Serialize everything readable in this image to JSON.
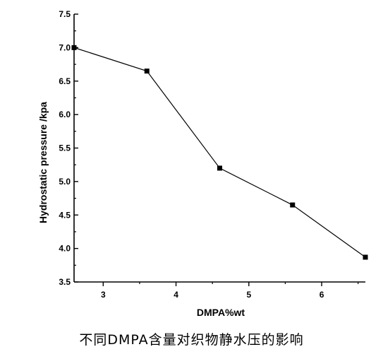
{
  "chart_data": {
    "type": "line",
    "xlabel": "DMPA%wt",
    "ylabel": "Hydrostatic pressure /kpa",
    "x": [
      2.6,
      3.6,
      4.6,
      5.6,
      6.6
    ],
    "series": [
      {
        "values": [
          7.0,
          6.65,
          5.2,
          4.65,
          3.87
        ]
      }
    ],
    "xlim": [
      2.6,
      6.6
    ],
    "ylim": [
      3.5,
      7.5
    ],
    "xticks": [
      3,
      4,
      5,
      6
    ],
    "xtick_labels": [
      "3",
      "4",
      "5",
      "6"
    ],
    "yticks": [
      3.5,
      4.0,
      4.5,
      5.0,
      5.5,
      6.0,
      6.5,
      7.0,
      7.5
    ],
    "ytick_labels": [
      "3.5",
      "4.0",
      "4.5",
      "5.0",
      "5.5",
      "6.0",
      "6.5",
      "7.0",
      "7.5"
    ],
    "grid": false,
    "marker": "square",
    "color": "#000000"
  },
  "caption": "不同DMPA含量对织物静水压的影响"
}
